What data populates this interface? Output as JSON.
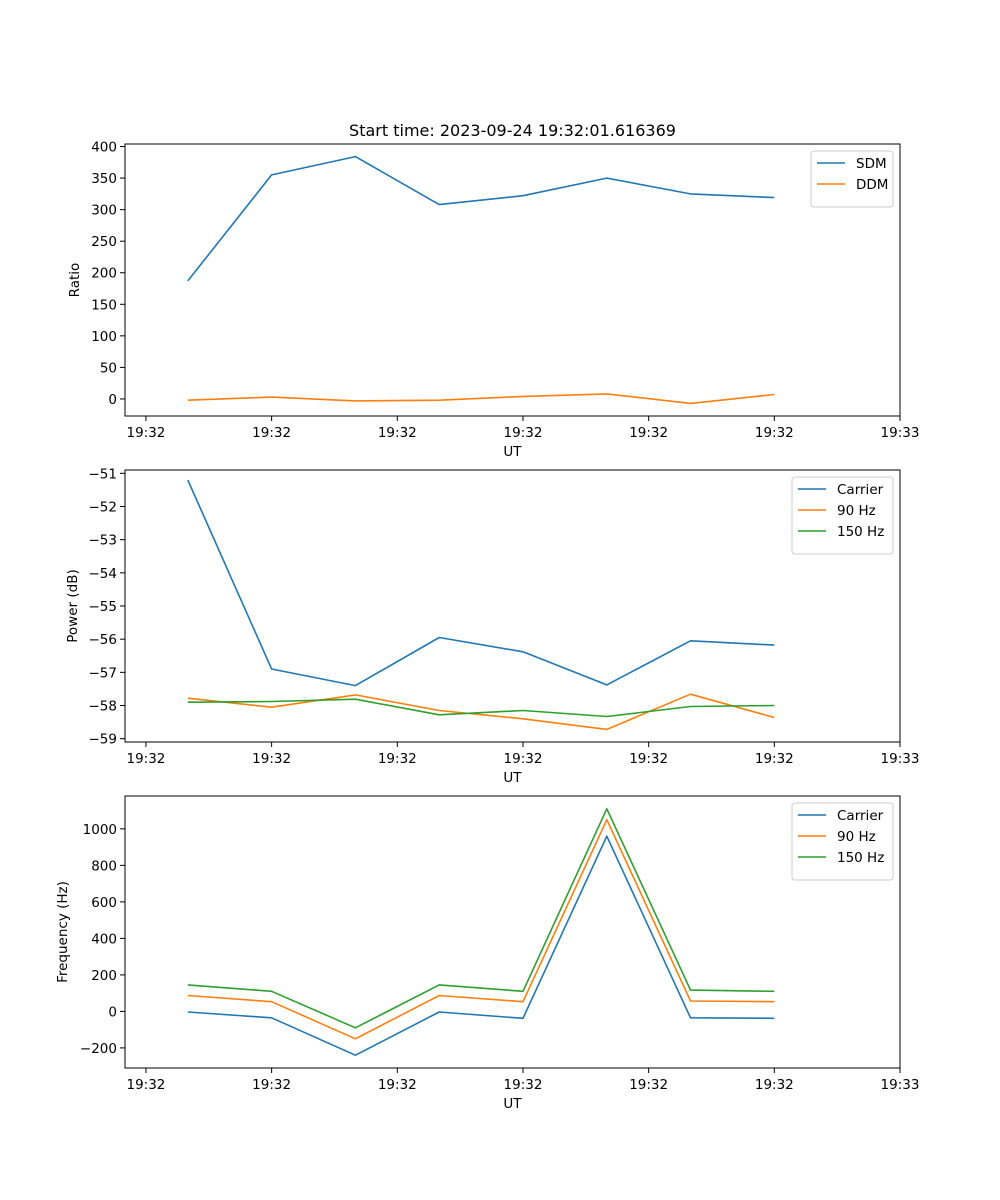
{
  "figure_title": "Start time: 2023-09-24 19:32:01.616369",
  "chart_data": [
    {
      "type": "line",
      "name": "ratio",
      "title": "Start time: 2023-09-24 19:32:01.616369",
      "xlabel": "UT",
      "ylabel": "Ratio",
      "xlim": [
        -0.75,
        8.5
      ],
      "ylim": [
        -27,
        404
      ],
      "x_ticks": [
        -0.5,
        1.0,
        2.5,
        4.0,
        5.5,
        7.0,
        8.5
      ],
      "x_tick_labels": [
        "19:32",
        "19:32",
        "19:32",
        "19:32",
        "19:32",
        "19:32",
        "19:33"
      ],
      "y_ticks": [
        0,
        50,
        100,
        150,
        200,
        250,
        300,
        350,
        400
      ],
      "y_tick_labels": [
        "0",
        "50",
        "100",
        "150",
        "200",
        "250",
        "300",
        "350",
        "400"
      ],
      "x": [
        0,
        1,
        2,
        3,
        4,
        5,
        6,
        7
      ],
      "legend_position": "top-right",
      "series": [
        {
          "name": "SDM",
          "color": "#1f77b4",
          "values": [
            187,
            355,
            384,
            308,
            322,
            350,
            325,
            319
          ]
        },
        {
          "name": "DDM",
          "color": "#ff7f0e",
          "values": [
            -2,
            3,
            -3,
            -2,
            4,
            8,
            -7,
            7
          ]
        }
      ]
    },
    {
      "type": "line",
      "name": "power",
      "title": "",
      "xlabel": "UT",
      "ylabel": "Power (dB)",
      "xlim": [
        -0.75,
        8.5
      ],
      "ylim": [
        -59.1,
        -50.9
      ],
      "x_ticks": [
        -0.5,
        1.0,
        2.5,
        4.0,
        5.5,
        7.0,
        8.5
      ],
      "x_tick_labels": [
        "19:32",
        "19:32",
        "19:32",
        "19:32",
        "19:32",
        "19:32",
        "19:33"
      ],
      "y_ticks": [
        -51,
        -52,
        -53,
        -54,
        -55,
        -56,
        -57,
        -58,
        -59
      ],
      "y_tick_labels": [
        "−51",
        "−52",
        "−53",
        "−54",
        "−55",
        "−56",
        "−57",
        "−58",
        "−59"
      ],
      "x": [
        0,
        1,
        2,
        3,
        4,
        5,
        6,
        7
      ],
      "legend_position": "top-right",
      "series": [
        {
          "name": "Carrier",
          "color": "#1f77b4",
          "values": [
            -51.2,
            -56.9,
            -57.4,
            -55.95,
            -56.38,
            -57.38,
            -56.05,
            -56.18
          ]
        },
        {
          "name": "90 Hz",
          "color": "#ff7f0e",
          "values": [
            -57.78,
            -58.05,
            -57.68,
            -58.15,
            -58.4,
            -58.72,
            -57.66,
            -58.36
          ]
        },
        {
          "name": "150 Hz",
          "color": "#2ca02c",
          "values": [
            -57.9,
            -57.88,
            -57.81,
            -58.28,
            -58.15,
            -58.33,
            -58.03,
            -58.0
          ]
        }
      ]
    },
    {
      "type": "line",
      "name": "frequency",
      "title": "",
      "xlabel": "UT",
      "ylabel": "Frequency (Hz)",
      "xlim": [
        -0.75,
        8.5
      ],
      "ylim": [
        -310,
        1180
      ],
      "x_ticks": [
        -0.5,
        1.0,
        2.5,
        4.0,
        5.5,
        7.0,
        8.5
      ],
      "x_tick_labels": [
        "19:32",
        "19:32",
        "19:32",
        "19:32",
        "19:32",
        "19:32",
        "19:33"
      ],
      "y_ticks": [
        -200,
        0,
        200,
        400,
        600,
        800,
        1000
      ],
      "y_tick_labels": [
        "−200",
        "0",
        "200",
        "400",
        "600",
        "800",
        "1000"
      ],
      "x": [
        0,
        1,
        2,
        3,
        4,
        5,
        6,
        7
      ],
      "legend_position": "top-right",
      "series": [
        {
          "name": "Carrier",
          "color": "#1f77b4",
          "values": [
            -3,
            -35,
            -240,
            -3,
            -38,
            960,
            -35,
            -38
          ]
        },
        {
          "name": "90 Hz",
          "color": "#ff7f0e",
          "values": [
            87,
            53,
            -150,
            87,
            53,
            1050,
            57,
            53
          ]
        },
        {
          "name": "150 Hz",
          "color": "#2ca02c",
          "values": [
            145,
            110,
            -90,
            145,
            110,
            1110,
            117,
            110
          ]
        }
      ]
    }
  ]
}
